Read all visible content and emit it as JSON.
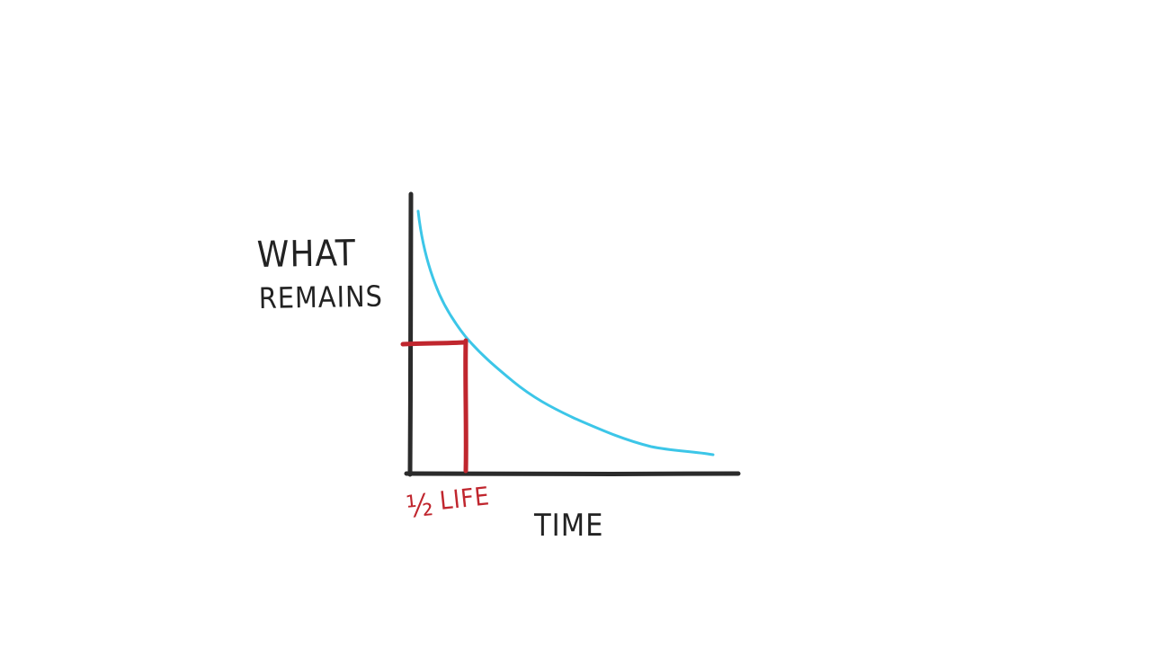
{
  "diagram": {
    "ylabel_line1": "WHAT",
    "ylabel_line2": "REMAINS",
    "xlabel": "TIME",
    "half_life_symbol": "½",
    "half_life_word": "LIFE"
  },
  "colors": {
    "axis": "#2b2b2b",
    "curve": "#3cc6e8",
    "marker": "#c0262e",
    "text": "#222222"
  }
}
